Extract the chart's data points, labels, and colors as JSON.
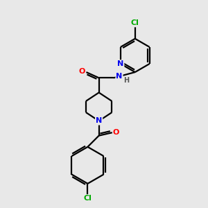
{
  "bg_color": "#e8e8e8",
  "bond_color": "#000000",
  "atom_colors": {
    "N": "#0000ee",
    "O": "#ff0000",
    "Cl": "#00aa00",
    "H": "#555555"
  },
  "figsize": [
    3.0,
    3.0
  ],
  "dpi": 100,
  "lw": 1.6,
  "fs": 8.0
}
